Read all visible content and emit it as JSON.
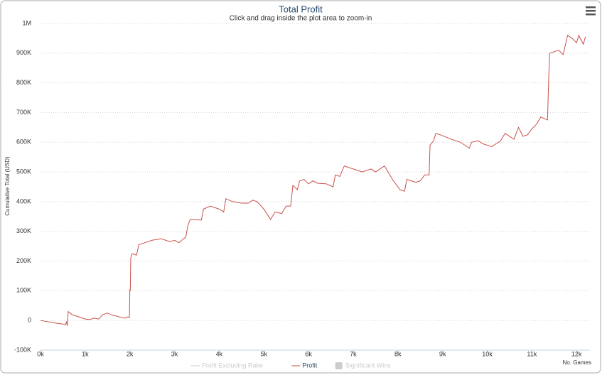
{
  "chart_data": {
    "type": "line",
    "title": "Total Profit",
    "subtitle": "Click and drag inside the plot area to zoom-in",
    "y_label": "Cumulative Total (USD)",
    "x_label": "No. Games",
    "xlim": [
      0,
      12300
    ],
    "ylim": [
      -100000,
      1000000
    ],
    "xticks": [
      {
        "value": 0,
        "label": "0k"
      },
      {
        "value": 1000,
        "label": "1k"
      },
      {
        "value": 2000,
        "label": "2k"
      },
      {
        "value": 3000,
        "label": "3k"
      },
      {
        "value": 4000,
        "label": "4k"
      },
      {
        "value": 5000,
        "label": "5k"
      },
      {
        "value": 6000,
        "label": "6k"
      },
      {
        "value": 7000,
        "label": "7k"
      },
      {
        "value": 8000,
        "label": "8k"
      },
      {
        "value": 9000,
        "label": "9k"
      },
      {
        "value": 10000,
        "label": "10k"
      },
      {
        "value": 11000,
        "label": "11k"
      },
      {
        "value": 12000,
        "label": "12k"
      }
    ],
    "yticks": [
      {
        "value": -100000,
        "label": "-100K"
      },
      0,
      {
        "value": 100000,
        "label": "100K"
      },
      {
        "value": 200000,
        "label": "200K"
      },
      {
        "value": 300000,
        "label": "300K"
      },
      {
        "value": 400000,
        "label": "400K"
      },
      {
        "value": 500000,
        "label": "500K"
      },
      {
        "value": 600000,
        "label": "600K"
      },
      {
        "value": 700000,
        "label": "700K"
      },
      {
        "value": 800000,
        "label": "800K"
      },
      {
        "value": 900000,
        "label": "900K"
      },
      {
        "value": 1000000,
        "label": "1M"
      }
    ],
    "grid": true,
    "x": [
      0,
      300,
      500,
      550,
      580,
      600,
      620,
      700,
      800,
      900,
      1000,
      1100,
      1200,
      1300,
      1400,
      1500,
      1600,
      1700,
      1800,
      1900,
      1950,
      1990,
      2000,
      2010,
      2020,
      2050,
      2150,
      2200,
      2300,
      2500,
      2700,
      2900,
      3000,
      3100,
      3200,
      3250,
      3300,
      3350,
      3600,
      3650,
      3800,
      4000,
      4100,
      4150,
      4300,
      4500,
      4650,
      4750,
      4850,
      5000,
      5150,
      5250,
      5400,
      5500,
      5600,
      5650,
      5750,
      5800,
      5900,
      6000,
      6100,
      6200,
      6400,
      6550,
      6600,
      6700,
      6800,
      7000,
      7200,
      7400,
      7500,
      7700,
      7900,
      8050,
      8150,
      8200,
      8400,
      8500,
      8600,
      8700,
      8720,
      8800,
      8850,
      8950,
      9200,
      9400,
      9600,
      9650,
      9800,
      9900,
      10000,
      10100,
      10250,
      10300,
      10400,
      10500,
      10600,
      10700,
      10800,
      10900,
      11000,
      11100,
      11200,
      11350,
      11380,
      11400,
      11600,
      11700,
      11800,
      11900,
      12000,
      12050,
      12100,
      12150,
      12200
    ],
    "series": [
      {
        "name": "Profit Excluding Rake",
        "color": "#cccccc",
        "visible": false,
        "symbol": "line"
      },
      {
        "name": "Profit",
        "color": "#c9504a",
        "visible": true,
        "symbol": "line",
        "values": [
          0,
          -8000,
          -12000,
          -15000,
          -5000,
          -18000,
          30000,
          20000,
          15000,
          10000,
          5000,
          3000,
          8000,
          5000,
          20000,
          25000,
          18000,
          15000,
          10000,
          8000,
          12000,
          10000,
          105000,
          100000,
          210000,
          225000,
          220000,
          255000,
          260000,
          270000,
          275000,
          265000,
          270000,
          262000,
          275000,
          280000,
          320000,
          340000,
          338000,
          375000,
          385000,
          375000,
          365000,
          410000,
          400000,
          395000,
          395000,
          405000,
          400000,
          375000,
          340000,
          365000,
          360000,
          385000,
          385000,
          455000,
          440000,
          470000,
          475000,
          460000,
          470000,
          462000,
          460000,
          450000,
          490000,
          485000,
          520000,
          510000,
          500000,
          510000,
          500000,
          520000,
          470000,
          440000,
          435000,
          475000,
          465000,
          470000,
          490000,
          490000,
          590000,
          605000,
          630000,
          625000,
          610000,
          600000,
          580000,
          600000,
          605000,
          595000,
          590000,
          585000,
          600000,
          605000,
          630000,
          620000,
          610000,
          650000,
          620000,
          625000,
          645000,
          660000,
          685000,
          675000,
          830000,
          900000,
          910000,
          895000,
          960000,
          950000,
          935000,
          960000,
          945000,
          930000,
          955000
        ]
      },
      {
        "name": "Significant Wins",
        "color": "#cccccc",
        "visible": false,
        "symbol": "square"
      }
    ]
  }
}
